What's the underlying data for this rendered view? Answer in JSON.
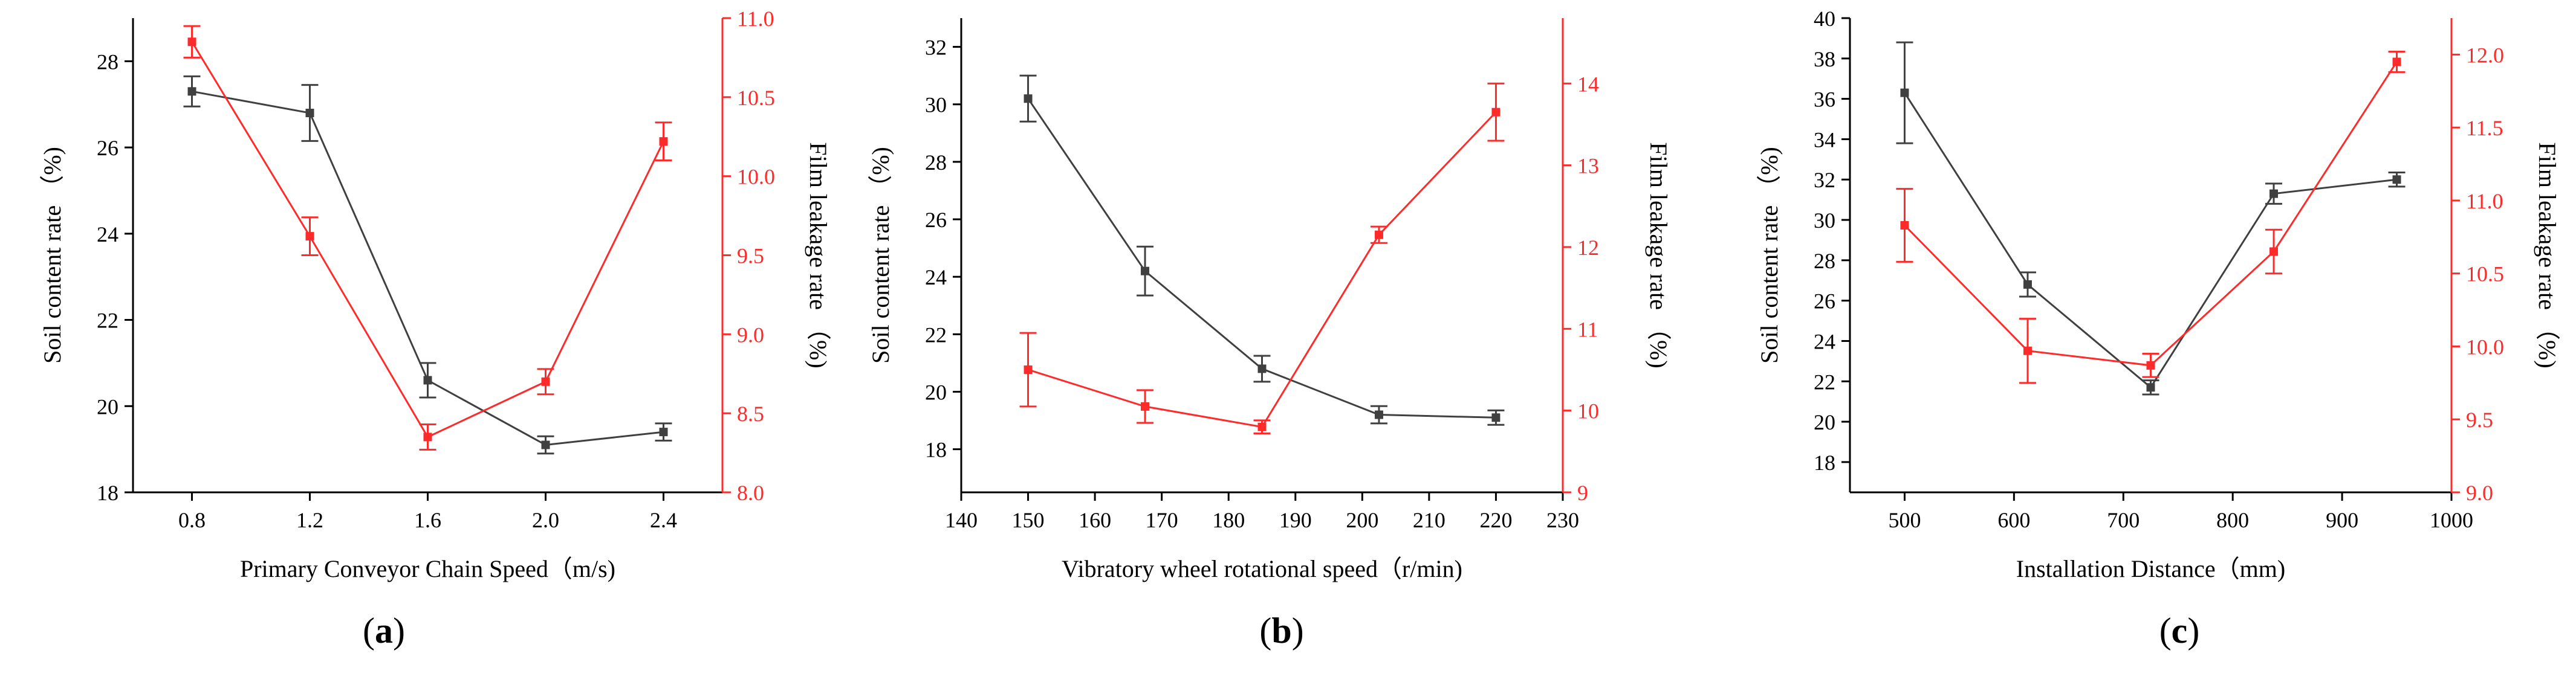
{
  "chart_data": [
    {
      "type": "line",
      "panel_label": "a",
      "xlabel": "Primary Conveyor Chain Speed（m/s)",
      "ylabel_left": "Soil content rate （%)",
      "ylabel_right": "Film leakage rate （%)",
      "xlim": [
        0.6,
        2.6
      ],
      "ylim_left": [
        18,
        29
      ],
      "ylim_right": [
        8.0,
        11.0
      ],
      "x_ticks": [
        0.8,
        1.2,
        1.6,
        2.0,
        2.4
      ],
      "x_tick_labels": [
        "0.8",
        "1.2",
        "1.6",
        "2.0",
        "2.4"
      ],
      "y_left_ticks": [
        18,
        20,
        22,
        24,
        26,
        28
      ],
      "y_left_tick_labels": [
        "18",
        "20",
        "22",
        "24",
        "26",
        "28"
      ],
      "y_right_ticks": [
        8.0,
        8.5,
        9.0,
        9.5,
        10.0,
        10.5,
        11.0
      ],
      "y_right_tick_labels": [
        "8.0",
        "8.5",
        "9.0",
        "9.5",
        "10.0",
        "10.5",
        "11.0"
      ],
      "series": [
        {
          "axis": "left",
          "color": "#404040",
          "x": [
            0.8,
            1.2,
            1.6,
            2.0,
            2.4
          ],
          "y": [
            27.3,
            26.8,
            20.6,
            19.1,
            19.4
          ],
          "err": [
            0.35,
            0.65,
            0.4,
            0.2,
            0.2
          ]
        },
        {
          "axis": "right",
          "color": "#ff2a2a",
          "x": [
            0.8,
            1.2,
            1.6,
            2.0,
            2.4
          ],
          "y": [
            10.85,
            9.62,
            8.35,
            8.7,
            10.22
          ],
          "err": [
            0.1,
            0.12,
            0.08,
            0.08,
            0.12
          ]
        }
      ]
    },
    {
      "type": "line",
      "panel_label": "b",
      "xlabel": "Vibratory wheel rotational speed（r/min)",
      "ylabel_left": "Soil content rate （%)",
      "ylabel_right": "Film leakage rate （%)",
      "xlim": [
        140,
        230
      ],
      "ylim_left": [
        16.5,
        33
      ],
      "ylim_right": [
        9,
        14.8
      ],
      "x_ticks": [
        140,
        150,
        160,
        170,
        180,
        190,
        200,
        210,
        220,
        230
      ],
      "x_tick_labels": [
        "140",
        "150",
        "160",
        "170",
        "180",
        "190",
        "200",
        "210",
        "220",
        "230"
      ],
      "y_left_ticks": [
        18,
        20,
        22,
        24,
        26,
        28,
        30,
        32
      ],
      "y_left_tick_labels": [
        "18",
        "20",
        "22",
        "24",
        "26",
        "28",
        "30",
        "32"
      ],
      "y_right_ticks": [
        9,
        10,
        11,
        12,
        13,
        14
      ],
      "y_right_tick_labels": [
        "9",
        "10",
        "11",
        "12",
        "13",
        "14"
      ],
      "series": [
        {
          "axis": "left",
          "color": "#404040",
          "x": [
            150,
            167.5,
            185,
            202.5,
            220
          ],
          "y": [
            30.2,
            24.2,
            20.8,
            19.2,
            19.1
          ],
          "err": [
            0.8,
            0.85,
            0.45,
            0.3,
            0.25
          ]
        },
        {
          "axis": "right",
          "color": "#ff2a2a",
          "x": [
            150,
            167.5,
            185,
            202.5,
            220
          ],
          "y": [
            10.5,
            10.05,
            9.8,
            12.15,
            13.65
          ],
          "err": [
            0.45,
            0.2,
            0.08,
            0.1,
            0.35
          ]
        }
      ]
    },
    {
      "type": "line",
      "panel_label": "c",
      "xlabel": "Installation Distance（mm)",
      "ylabel_left": "Soil content rate （%)",
      "ylabel_right": "Film leakage rate （%)",
      "xlim": [
        450,
        1000
      ],
      "ylim_left": [
        16.5,
        40
      ],
      "ylim_right": [
        9.0,
        12.25
      ],
      "x_ticks": [
        500,
        600,
        700,
        800,
        900,
        1000
      ],
      "x_tick_labels": [
        "500",
        "600",
        "700",
        "800",
        "900",
        "1000"
      ],
      "y_left_ticks": [
        18,
        20,
        22,
        24,
        26,
        28,
        30,
        32,
        34,
        36,
        38,
        40
      ],
      "y_left_tick_labels": [
        "18",
        "20",
        "22",
        "24",
        "26",
        "28",
        "30",
        "32",
        "34",
        "36",
        "38",
        "40"
      ],
      "y_right_ticks": [
        9.0,
        9.5,
        10.0,
        10.5,
        11.0,
        11.5,
        12.0
      ],
      "y_right_tick_labels": [
        "9.0",
        "9.5",
        "10.0",
        "10.5",
        "11.0",
        "11.5",
        "12.0"
      ],
      "series": [
        {
          "axis": "left",
          "color": "#404040",
          "x": [
            500,
            612.5,
            725,
            837.5,
            950
          ],
          "y": [
            36.3,
            26.8,
            21.7,
            31.3,
            32.0
          ],
          "err": [
            2.5,
            0.6,
            0.35,
            0.5,
            0.35
          ]
        },
        {
          "axis": "right",
          "color": "#ff2a2a",
          "x": [
            500,
            612.5,
            725,
            837.5,
            950
          ],
          "y": [
            10.83,
            9.97,
            9.87,
            10.65,
            11.95
          ],
          "err": [
            0.25,
            0.22,
            0.08,
            0.15,
            0.07
          ]
        }
      ]
    }
  ]
}
